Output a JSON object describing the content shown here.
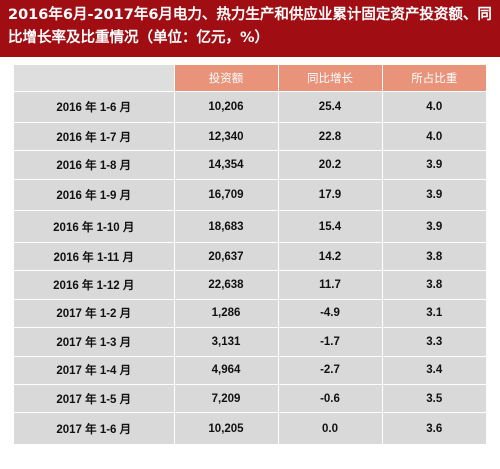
{
  "title": "2016年6月-2017年6月电力、热力生产和供应业累计固定资产投资额、同比增长率及比重情况（单位：亿元，%）",
  "table": {
    "headers": [
      "",
      "投资额",
      "同比增长",
      "所占比重"
    ],
    "rows": [
      {
        "period": "2016 年 1-6 月",
        "investment": "10,206",
        "growth": "25.4",
        "share": "4.0"
      },
      {
        "period": "2016 年 1-7 月",
        "investment": "12,340",
        "growth": "22.8",
        "share": "4.0"
      },
      {
        "period": "2016 年 1-8 月",
        "investment": "14,354",
        "growth": "20.2",
        "share": "3.9"
      },
      {
        "period": "2016 年 1-9 月",
        "investment": "16,709",
        "growth": "17.9",
        "share": "3.9"
      },
      {
        "period": "2016 年 1-10 月",
        "investment": "18,683",
        "growth": "15.4",
        "share": "3.9"
      },
      {
        "period": "2016 年 1-11 月",
        "investment": "20,637",
        "growth": "14.2",
        "share": "3.8"
      },
      {
        "period": "2016 年 1-12 月",
        "investment": "22,638",
        "growth": "11.7",
        "share": "3.8"
      },
      {
        "period": "2017 年 1-2 月",
        "investment": "1,286",
        "growth": "-4.9",
        "share": "3.1"
      },
      {
        "period": "2017 年 1-3 月",
        "investment": "3,131",
        "growth": "-1.7",
        "share": "3.3"
      },
      {
        "period": "2017 年 1-4 月",
        "investment": "4,964",
        "growth": "-2.7",
        "share": "3.4"
      },
      {
        "period": "2017 年 1-5 月",
        "investment": "7,209",
        "growth": "-0.6",
        "share": "3.5"
      },
      {
        "period": "2017 年 1-6 月",
        "investment": "10,205",
        "growth": "0.0",
        "share": "3.6"
      }
    ]
  }
}
